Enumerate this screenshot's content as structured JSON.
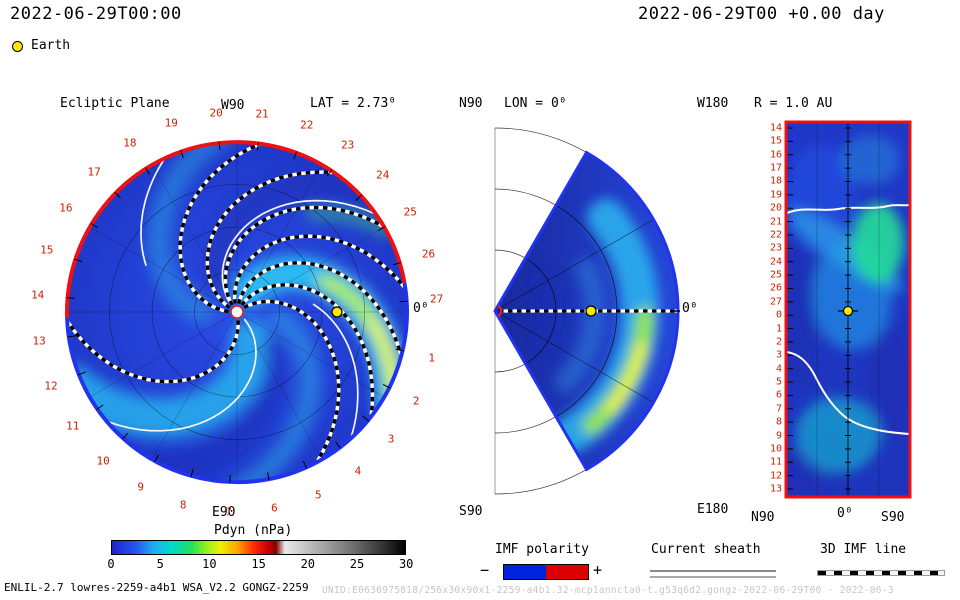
{
  "header": {
    "time_left": "2022-06-29T00:00",
    "time_right": "2022-06-29T00 +0.00 day",
    "earth_label": "Earth",
    "earth_color": "#ffe800"
  },
  "left_panel": {
    "title": "Ecliptic Plane",
    "lat_label": "LAT = 2.73⁰",
    "top_label": "W90",
    "bottom_label": "E90",
    "right_label": "0⁰",
    "ring_numbers": [
      "1",
      "2",
      "3",
      "4",
      "5",
      "6",
      "7",
      "8",
      "9",
      "10",
      "11",
      "12",
      "13",
      "14",
      "15",
      "16",
      "17",
      "18",
      "19",
      "20",
      "21",
      "22",
      "23",
      "24",
      "25",
      "26",
      "27"
    ]
  },
  "middle_panel": {
    "title": "LON = 0⁰",
    "top_label": "N90",
    "bottom_label": "S90",
    "right_label": "0⁰"
  },
  "right_panel": {
    "title": "R = 1.0 AU",
    "top_left_label": "W180",
    "bottom_left_label": "E180",
    "row_numbers": [
      "14",
      "15",
      "16",
      "17",
      "18",
      "19",
      "20",
      "21",
      "22",
      "23",
      "24",
      "25",
      "26",
      "27",
      "0",
      "1",
      "2",
      "3",
      "4",
      "5",
      "6",
      "7",
      "8",
      "9",
      "10",
      "11",
      "12",
      "13"
    ],
    "x_labels": [
      "N90",
      "0⁰",
      "S90"
    ]
  },
  "colorbar": {
    "title": "Pdyn (nPa)",
    "ticks": [
      "0",
      "5",
      "10",
      "15",
      "20",
      "25",
      "30"
    ]
  },
  "legends": {
    "imf_polarity": {
      "label": "IMF polarity",
      "minus": "−",
      "plus": "+",
      "negative_color": "#0022dd",
      "positive_color": "#dd0000"
    },
    "current_sheath": {
      "label": "Current sheath"
    },
    "imf_line_3d": {
      "label": "3D IMF line"
    }
  },
  "footer": {
    "model_info": "ENLIL-2.7 lowres-2259-a4b1 WSA_V2.2 GONGZ-2259",
    "watermark": "UNID:E0630975818/256x30x90x1-2259-a4b1.32-mcp1anncta0-t.g53q6d2.gongz-2022-06-29T00 - 2022-06-3"
  },
  "chart_data": {
    "type": "heatmap",
    "model": "WSA-ENLIL solar wind MHD simulation (ENLIL-2.7, WSA_V2.2, GONGZ-2259 magnetogram)",
    "quantity": "Pdyn (nPa)",
    "timestamp": "2022-06-29T00:00",
    "forecast_offset_days": 0.0,
    "colorbar": {
      "label": "Pdyn (nPa)",
      "range": [
        0,
        30
      ],
      "ticks": [
        0,
        5,
        10,
        15,
        20,
        25,
        30
      ]
    },
    "earth_marker": {
      "symbol": "yellow filled circle",
      "location": "1 AU, longitude 0, shown in all three panels"
    },
    "panels": [
      {
        "id": "ecliptic-plane",
        "title": "Ecliptic Plane",
        "lat_deg": 2.73,
        "angular_ticks": "Carrington time marks 1-27 (red) with W90 top, E90 bottom, 0 deg at right",
        "rim_polarity": "red (positive IMF) across the top rim, blue (negative IMF) across the bottom rim",
        "features": [
          "Parker-spiral density arms ~2-6 nPa (cyan) on ~1-3 nPa background (blue)",
          "high-pressure corotating stream ~12-22 nPa (green-yellow) near ticks 1-3 at outer radii",
          "secondary enhancement ~6-10 nPa near ticks 25-26",
          "white solid current-sheet lines and black/white dashed 3D IMF field lines spiraling from the Sun"
        ]
      },
      {
        "id": "meridional-cut",
        "title": "LON = 0",
        "lat_range_deg": [
          -60,
          60
        ],
        "features": [
          "crescent of enhanced pressure ~8-18 nPa at outer radii, brightest (yellow) south of the equator",
          "dashed IMF line along 0 deg latitude through Earth"
        ]
      },
      {
        "id": "constant-radius-map",
        "title": "R = 1.0 AU",
        "x_axis": "heliolatitude N90 to S90",
        "y_axis": "time marks 14-27 then 0-13 (W180 top, E180 bottom)",
        "features": [
          "bright patch ~8-12 nPa north of center near marks 24-27",
          "diagonal compressed stream bands ~3-6 nPa",
          "white current-sheet crossings near marks 20-21 and 3-8"
        ]
      }
    ],
    "overlays": {
      "imf_polarity_negative": "#0022dd",
      "imf_polarity_positive": "#dd0000",
      "current_sheet_style": "double gray/white line",
      "imf_line_style": "black-white dashed"
    }
  }
}
